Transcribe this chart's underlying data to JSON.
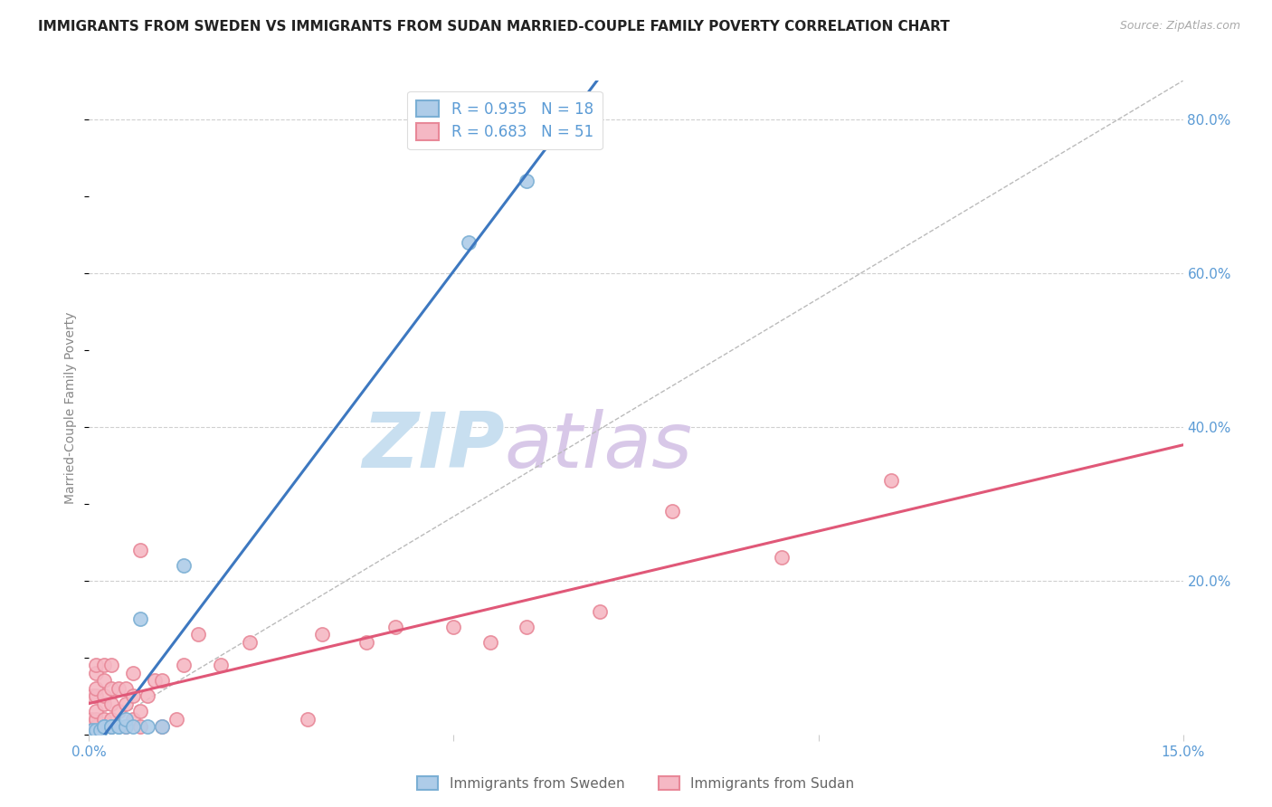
{
  "title": "IMMIGRANTS FROM SWEDEN VS IMMIGRANTS FROM SUDAN MARRIED-COUPLE FAMILY POVERTY CORRELATION CHART",
  "source": "Source: ZipAtlas.com",
  "ylabel": "Married-Couple Family Poverty",
  "xlim": [
    0.0,
    0.15
  ],
  "ylim": [
    0.0,
    0.85
  ],
  "sweden_scatter_color": "#aecce8",
  "sweden_edge_color": "#7bafd4",
  "sudan_scatter_color": "#f5b8c4",
  "sudan_edge_color": "#e88898",
  "sweden_line_color": "#3d78c0",
  "sudan_line_color": "#e05878",
  "legend_sweden_R": "0.935",
  "legend_sweden_N": "18",
  "legend_sudan_R": "0.683",
  "legend_sudan_N": "51",
  "sweden_x": [
    0.0005,
    0.001,
    0.0015,
    0.002,
    0.002,
    0.003,
    0.003,
    0.004,
    0.004,
    0.005,
    0.005,
    0.006,
    0.007,
    0.008,
    0.01,
    0.013,
    0.052,
    0.06
  ],
  "sweden_y": [
    0.005,
    0.005,
    0.005,
    0.01,
    0.01,
    0.01,
    0.01,
    0.01,
    0.01,
    0.01,
    0.02,
    0.01,
    0.15,
    0.01,
    0.01,
    0.22,
    0.64,
    0.72
  ],
  "sudan_x": [
    0.0003,
    0.0005,
    0.001,
    0.001,
    0.001,
    0.001,
    0.001,
    0.001,
    0.001,
    0.002,
    0.002,
    0.002,
    0.002,
    0.002,
    0.002,
    0.003,
    0.003,
    0.003,
    0.003,
    0.003,
    0.004,
    0.004,
    0.005,
    0.005,
    0.005,
    0.006,
    0.006,
    0.006,
    0.007,
    0.007,
    0.007,
    0.008,
    0.009,
    0.01,
    0.01,
    0.012,
    0.013,
    0.015,
    0.018,
    0.022,
    0.03,
    0.032,
    0.038,
    0.042,
    0.05,
    0.055,
    0.06,
    0.07,
    0.08,
    0.095,
    0.11
  ],
  "sudan_y": [
    0.02,
    0.05,
    0.01,
    0.02,
    0.03,
    0.05,
    0.06,
    0.08,
    0.09,
    0.01,
    0.02,
    0.04,
    0.05,
    0.07,
    0.09,
    0.01,
    0.02,
    0.04,
    0.06,
    0.09,
    0.03,
    0.06,
    0.01,
    0.04,
    0.06,
    0.02,
    0.05,
    0.08,
    0.01,
    0.03,
    0.24,
    0.05,
    0.07,
    0.01,
    0.07,
    0.02,
    0.09,
    0.13,
    0.09,
    0.12,
    0.02,
    0.13,
    0.12,
    0.14,
    0.14,
    0.12,
    0.14,
    0.16,
    0.29,
    0.23,
    0.33
  ],
  "grid_color": "#d0d0d0",
  "background_color": "#ffffff",
  "title_fontsize": 11,
  "axis_label_color": "#888888",
  "tick_label_color": "#5b9bd5",
  "watermark_zip_color": "#c8dff0",
  "watermark_atlas_color": "#d8c8e8"
}
